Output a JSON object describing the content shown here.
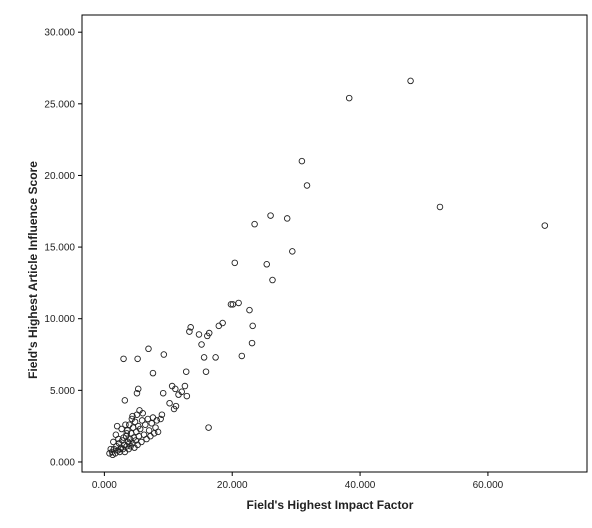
{
  "chart_data": {
    "type": "scatter",
    "title": "",
    "xlabel": "Field's Highest Impact Factor",
    "ylabel": "Field's Highest Article Influence Score",
    "xlim": [
      -3.5,
      75.5
    ],
    "ylim": [
      -0.7,
      31.2
    ],
    "x_ticks": [
      0,
      20,
      40,
      60
    ],
    "x_tick_labels": [
      "0.000",
      "20.000",
      "40.000",
      "60.000"
    ],
    "y_ticks": [
      0,
      5,
      10,
      15,
      20,
      25,
      30
    ],
    "y_tick_labels": [
      "0.000",
      "5.000",
      "10.000",
      "15.000",
      "20.000",
      "25.000",
      "30.000"
    ],
    "grid": false,
    "legend": "none",
    "marker": "open-circle",
    "points": [
      [
        0.8,
        0.6
      ],
      [
        1.2,
        0.7
      ],
      [
        1.5,
        0.9
      ],
      [
        1.7,
        0.6
      ],
      [
        1.9,
        1.1
      ],
      [
        2.1,
        0.8
      ],
      [
        2.3,
        1.3
      ],
      [
        2.4,
        0.7
      ],
      [
        2.6,
        1.0
      ],
      [
        2.8,
        1.5
      ],
      [
        2.9,
        0.9
      ],
      [
        3.1,
        1.2
      ],
      [
        3.2,
        0.7
      ],
      [
        3.4,
        1.8
      ],
      [
        3.5,
        1.1
      ],
      [
        3.6,
        2.2
      ],
      [
        3.7,
        1.4
      ],
      [
        3.8,
        0.9
      ],
      [
        3.9,
        2.6
      ],
      [
        4.0,
        1.6
      ],
      [
        4.1,
        1.1
      ],
      [
        4.2,
        2.0
      ],
      [
        4.3,
        3.0
      ],
      [
        4.4,
        1.3
      ],
      [
        4.5,
        2.4
      ],
      [
        4.6,
        1.7
      ],
      [
        4.7,
        1.0
      ],
      [
        4.8,
        2.8
      ],
      [
        4.9,
        1.5
      ],
      [
        5.0,
        2.1
      ],
      [
        5.1,
        3.3
      ],
      [
        5.2,
        1.2
      ],
      [
        5.3,
        2.5
      ],
      [
        5.4,
        1.8
      ],
      [
        5.5,
        3.6
      ],
      [
        5.6,
        2.3
      ],
      [
        5.8,
        1.4
      ],
      [
        5.9,
        2.9
      ],
      [
        6.0,
        3.4
      ],
      [
        6.2,
        1.9
      ],
      [
        6.4,
        2.6
      ],
      [
        6.6,
        1.6
      ],
      [
        6.8,
        3.0
      ],
      [
        7.0,
        2.2
      ],
      [
        7.2,
        1.8
      ],
      [
        7.4,
        2.7
      ],
      [
        7.6,
        3.1
      ],
      [
        7.8,
        2.0
      ],
      [
        8.0,
        2.4
      ],
      [
        8.2,
        2.9
      ],
      [
        8.4,
        2.1
      ],
      [
        1.0,
        0.9
      ],
      [
        1.4,
        1.4
      ],
      [
        1.8,
        1.9
      ],
      [
        2.2,
        1.6
      ],
      [
        2.7,
        2.3
      ],
      [
        3.0,
        1.7
      ],
      [
        3.3,
        2.6
      ],
      [
        3.5,
        2.0
      ],
      [
        3.9,
        1.3
      ],
      [
        4.4,
        3.2
      ],
      [
        1.3,
        0.5
      ],
      [
        2.0,
        2.5
      ],
      [
        2.5,
        0.9
      ],
      [
        3.0,
        7.2
      ],
      [
        3.2,
        4.3
      ],
      [
        5.1,
        4.8
      ],
      [
        5.3,
        5.1
      ],
      [
        5.2,
        7.2
      ],
      [
        6.9,
        7.9
      ],
      [
        7.6,
        6.2
      ],
      [
        9.3,
        7.5
      ],
      [
        9.2,
        4.8
      ],
      [
        9.0,
        3.3
      ],
      [
        8.8,
        3.0
      ],
      [
        10.2,
        4.1
      ],
      [
        10.6,
        5.3
      ],
      [
        11.1,
        5.1
      ],
      [
        11.6,
        4.7
      ],
      [
        12.1,
        4.9
      ],
      [
        12.6,
        5.3
      ],
      [
        12.9,
        4.6
      ],
      [
        12.8,
        6.3
      ],
      [
        11.2,
        3.9
      ],
      [
        10.9,
        3.7
      ],
      [
        13.3,
        9.1
      ],
      [
        13.5,
        9.4
      ],
      [
        14.8,
        8.9
      ],
      [
        15.2,
        8.2
      ],
      [
        15.6,
        7.3
      ],
      [
        15.9,
        6.3
      ],
      [
        16.1,
        8.8
      ],
      [
        16.4,
        9.0
      ],
      [
        16.3,
        2.4
      ],
      [
        17.4,
        7.3
      ],
      [
        17.9,
        9.5
      ],
      [
        18.5,
        9.7
      ],
      [
        19.8,
        11.0
      ],
      [
        20.1,
        11.0
      ],
      [
        20.4,
        13.9
      ],
      [
        21.0,
        11.1
      ],
      [
        21.5,
        7.4
      ],
      [
        22.7,
        10.6
      ],
      [
        23.1,
        8.3
      ],
      [
        23.2,
        9.5
      ],
      [
        23.5,
        16.6
      ],
      [
        25.4,
        13.8
      ],
      [
        26.0,
        17.2
      ],
      [
        26.3,
        12.7
      ],
      [
        28.6,
        17.0
      ],
      [
        29.4,
        14.7
      ],
      [
        30.9,
        21.0
      ],
      [
        31.7,
        19.3
      ],
      [
        38.3,
        25.4
      ],
      [
        47.9,
        26.6
      ],
      [
        52.5,
        17.8
      ],
      [
        68.9,
        16.5
      ]
    ]
  }
}
